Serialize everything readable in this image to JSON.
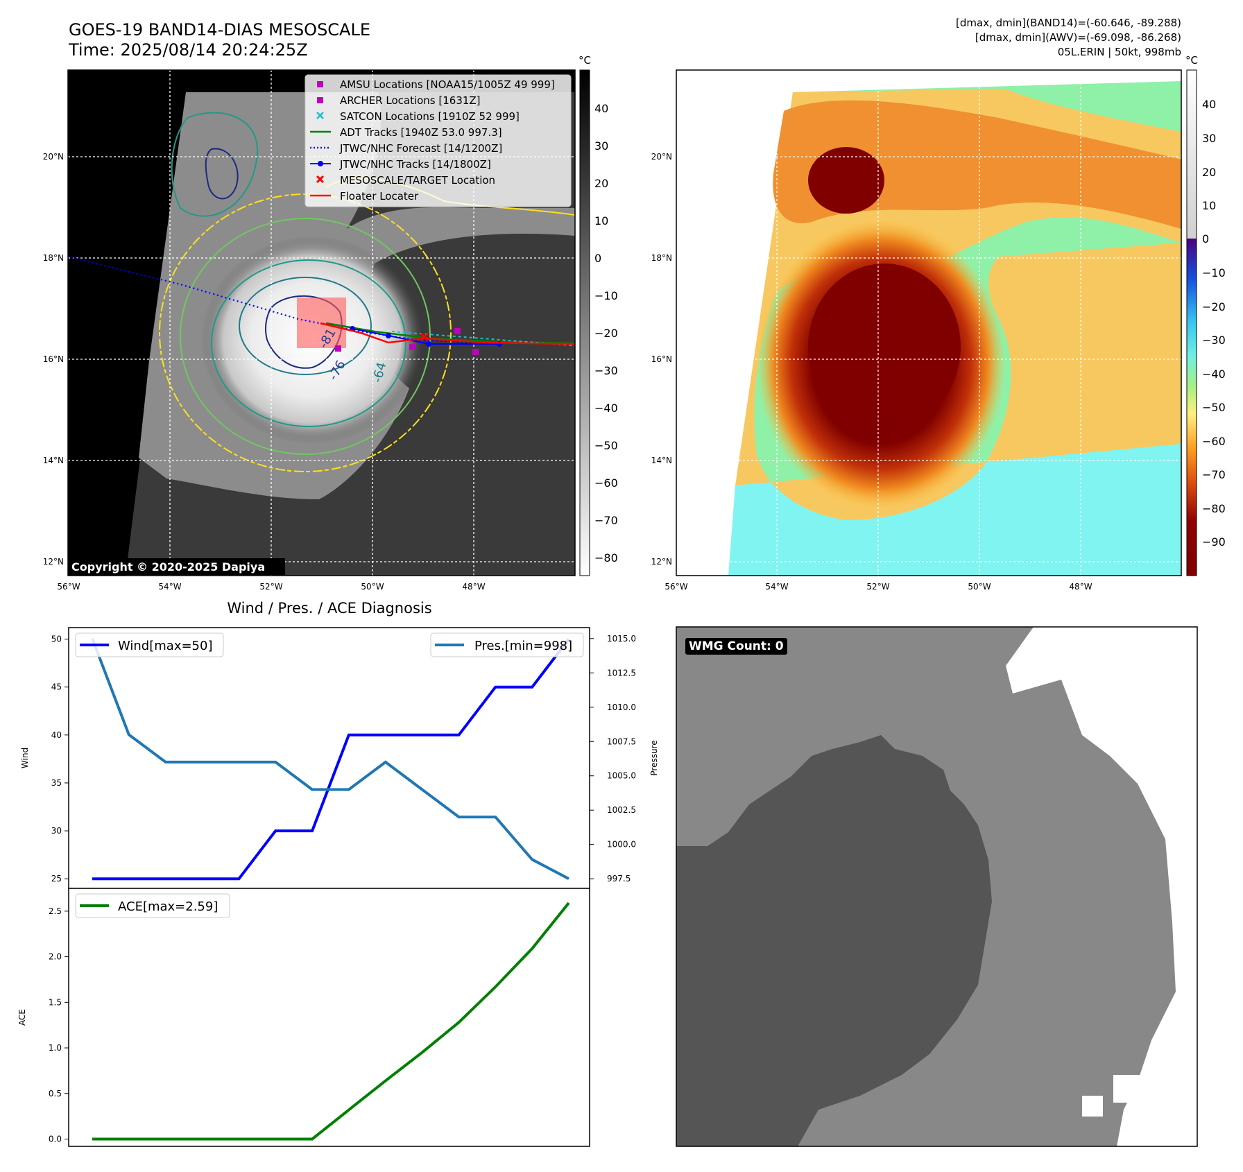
{
  "header": {
    "title_line1": "GOES-19 BAND14-DIAS MESOSCALE",
    "title_line2": "Time: 2025/08/14 20:24:25Z",
    "stats_line1": "[dmax, dmin](BAND14)=(-60.646, -89.288)",
    "stats_line2": "[dmax, dmin](AWV)=(-69.098, -86.268)",
    "stats_line3": "05L.ERIN | 50kt, 998mb"
  },
  "ir_map": {
    "lat_labels": [
      "20°N",
      "18°N",
      "16°N",
      "14°N",
      "12°N"
    ],
    "lon_labels": [
      "56°W",
      "54°W",
      "52°W",
      "50°W",
      "48°W"
    ],
    "copyright": "Copyright © 2020-2025 Dapiya",
    "contour_labels": [
      "-81",
      "-76",
      "-64"
    ],
    "colorbar_unit": "°C",
    "colorbar_ticks": [
      "40",
      "30",
      "20",
      "10",
      "0",
      "−10",
      "−20",
      "−30",
      "−40",
      "−50",
      "−60",
      "−70",
      "−80"
    ],
    "legend": [
      {
        "label": "AMSU Locations [NOAA15/1005Z 49 999]",
        "color": "#bf00bf",
        "marker": "square"
      },
      {
        "label": "ARCHER Locations [1631Z]",
        "color": "#bf00bf",
        "marker": "square"
      },
      {
        "label": "SATCON Locations [1910Z 52 999]",
        "color": "#17becf",
        "marker": "x"
      },
      {
        "label": "ADT Tracks [1940Z 53.0 997.3]",
        "color": "#008000",
        "marker": "line"
      },
      {
        "label": "JTWC/NHC Forecast [14/1200Z]",
        "color": "#0000ff",
        "marker": "dotted"
      },
      {
        "label": "JTWC/NHC Tracks [14/1800Z]",
        "color": "#0000ff",
        "marker": "line-dot"
      },
      {
        "label": "MESOSCALE/TARGET Location",
        "color": "#ff0000",
        "marker": "x"
      },
      {
        "label": "Floater Locater",
        "color": "#ff0000",
        "marker": "line"
      }
    ]
  },
  "awv_map": {
    "lat_labels": [
      "20°N",
      "18°N",
      "16°N",
      "14°N",
      "12°N"
    ],
    "lon_labels": [
      "56°W",
      "54°W",
      "52°W",
      "50°W",
      "48°W"
    ],
    "colorbar_unit": "°C",
    "colorbar_ticks": [
      "40",
      "30",
      "20",
      "10",
      "0",
      "−10",
      "−20",
      "−30",
      "−40",
      "−50",
      "−60",
      "−70",
      "−80",
      "−90"
    ]
  },
  "diagnosis": {
    "title": "Wind / Pres. / ACE Diagnosis",
    "wind_ylabel": "Wind",
    "pres_ylabel": "Pressure",
    "ace_ylabel": "ACE",
    "wind_legend": "Wind[max=50]",
    "pres_legend": "Pres.[min=998]",
    "ace_legend": "ACE[max=2.59]",
    "colors": {
      "wind": "#0000ff",
      "pres": "#1f77b4",
      "ace": "#008000"
    }
  },
  "wmg": {
    "badge": "WMG Count: 0"
  },
  "chart_data": [
    {
      "type": "line",
      "title": "Wind / Pres. / ACE Diagnosis",
      "x": [
        0,
        1,
        2,
        3,
        4,
        5,
        6,
        7,
        8,
        9,
        10,
        11,
        12,
        13
      ],
      "series": [
        {
          "name": "Wind[max=50]",
          "axis": "left",
          "values": [
            25,
            25,
            25,
            25,
            25,
            30,
            30,
            40,
            40,
            40,
            40,
            45,
            45,
            50
          ]
        },
        {
          "name": "Pres.[min=998]",
          "axis": "right",
          "values": [
            1015,
            1008,
            1006,
            1006,
            1006,
            1006,
            1004,
            1004,
            1006,
            1004,
            1002,
            1002,
            998.9,
            997.5
          ]
        }
      ],
      "ylabel": "Wind",
      "y2label": "Pressure",
      "ylim": [
        24,
        51.2
      ],
      "y2lim": [
        996.8,
        1015.8
      ],
      "yticks": [
        25,
        30,
        35,
        40,
        45,
        50
      ],
      "y2ticks": [
        "997.5",
        "1000.0",
        "1002.5",
        "1005.0",
        "1007.5",
        "1010.0",
        "1012.5",
        "1015.0"
      ]
    },
    {
      "type": "line",
      "x": [
        0,
        1,
        2,
        3,
        4,
        5,
        6,
        7,
        8,
        9,
        10,
        11,
        12,
        13
      ],
      "series": [
        {
          "name": "ACE[max=2.59]",
          "values": [
            0,
            0,
            0,
            0,
            0,
            0,
            0,
            0.32,
            0.64,
            0.95,
            1.28,
            1.67,
            2.09,
            2.59
          ]
        }
      ],
      "ylabel": "ACE",
      "ylim": [
        -0.08,
        2.75
      ],
      "yticks": [
        "0.0",
        "0.5",
        "1.0",
        "1.5",
        "2.0",
        "2.5"
      ]
    }
  ]
}
